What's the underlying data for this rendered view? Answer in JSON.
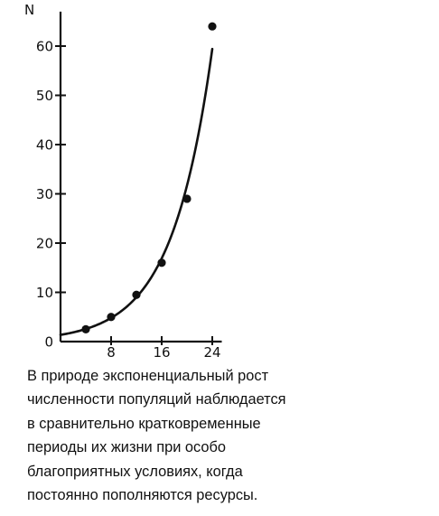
{
  "chart_data": {
    "type": "line",
    "ylabel": "N",
    "xlabel": "",
    "x_ticks": [
      8,
      16,
      24
    ],
    "y_ticks": [
      0,
      10,
      20,
      30,
      40,
      50,
      60
    ],
    "xlim": [
      0,
      25.5
    ],
    "ylim": [
      0,
      67
    ],
    "grid": false,
    "series": [
      {
        "x": [
          4,
          8,
          12,
          16,
          20,
          24
        ],
        "y": [
          2.5,
          5,
          9.5,
          16,
          29,
          64
        ]
      }
    ]
  },
  "caption": {
    "lines": [
      "В природе экспоненциальный рост",
      "численности популяций наблюдается",
      "в сравнительно кратковременные",
      "периоды их жизни при особо",
      "благоприятных условиях, когда",
      "постоянно пополняются ресурсы."
    ]
  },
  "colors": {
    "ink": "#111111",
    "background": "#ffffff"
  }
}
